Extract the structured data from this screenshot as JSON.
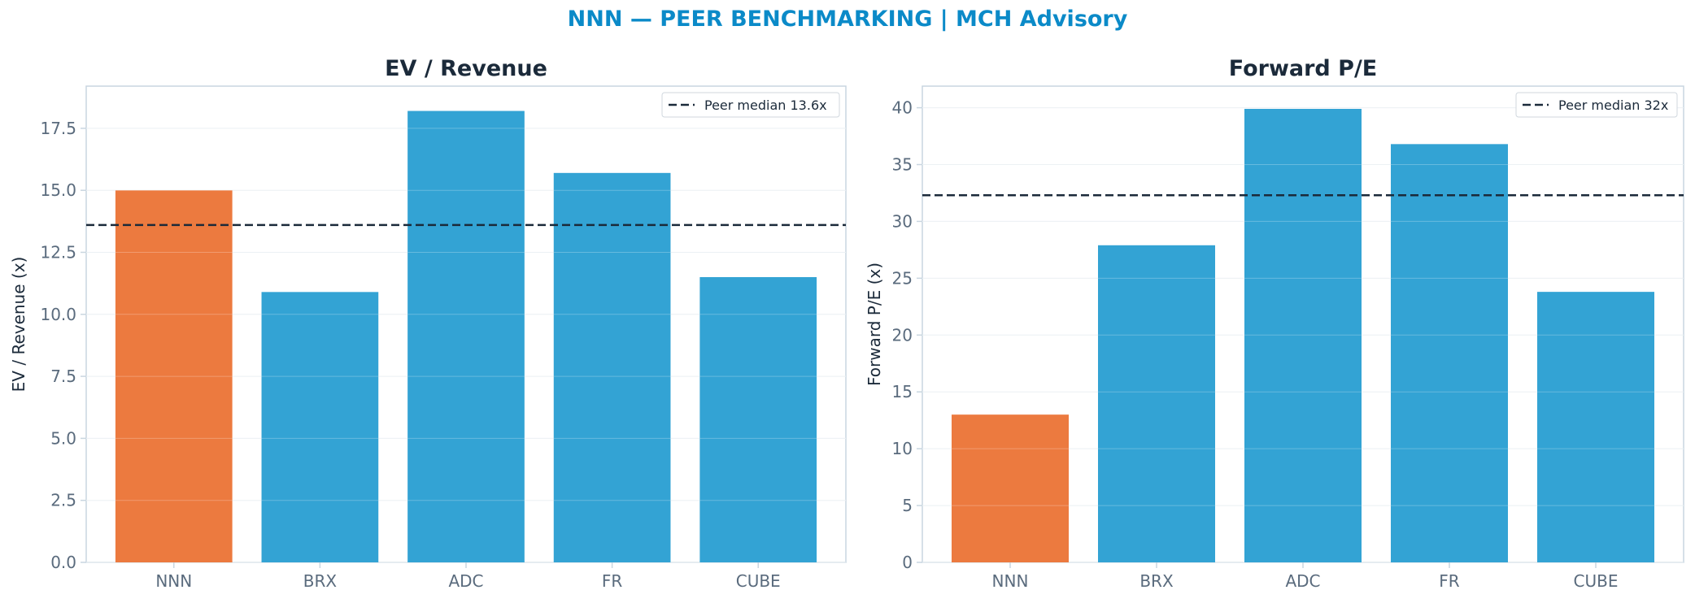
{
  "suptitle": "NNN — PEER BENCHMARKING | MCH Advisory",
  "colors": {
    "title": "#0b8ac8",
    "subject_bar": "#ec7a3f",
    "peer_bar": "#33a3d4",
    "median_line": "#1b2a3a",
    "axis": "#c9d6e0"
  },
  "chart_data": [
    {
      "type": "bar",
      "title": "EV / Revenue",
      "ylabel": "EV / Revenue (x)",
      "categories": [
        "NNN",
        "BRX",
        "ADC",
        "FR",
        "CUBE"
      ],
      "values": [
        15.0,
        10.9,
        18.2,
        15.7,
        11.5
      ],
      "highlight": "NNN",
      "ylim": [
        0,
        19.2
      ],
      "yticks": [
        0.0,
        2.5,
        5.0,
        7.5,
        10.0,
        12.5,
        15.0,
        17.5
      ],
      "ytick_labels": [
        "0.0",
        "2.5",
        "5.0",
        "7.5",
        "10.0",
        "12.5",
        "15.0",
        "17.5"
      ],
      "reference_line": {
        "value": 13.6,
        "label": "Peer median 13.6x"
      },
      "legend_position": "top-right",
      "grid": true
    },
    {
      "type": "bar",
      "title": "Forward P/E",
      "ylabel": "Forward P/E (x)",
      "categories": [
        "NNN",
        "BRX",
        "ADC",
        "FR",
        "CUBE"
      ],
      "values": [
        13.0,
        27.9,
        39.9,
        36.8,
        23.8
      ],
      "highlight": "NNN",
      "ylim": [
        0,
        41.9
      ],
      "yticks": [
        0,
        5,
        10,
        15,
        20,
        25,
        30,
        35,
        40
      ],
      "ytick_labels": [
        "0",
        "5",
        "10",
        "15",
        "20",
        "25",
        "30",
        "35",
        "40"
      ],
      "reference_line": {
        "value": 32.3,
        "label": "Peer median 32x"
      },
      "legend_position": "top-right",
      "grid": true
    }
  ]
}
